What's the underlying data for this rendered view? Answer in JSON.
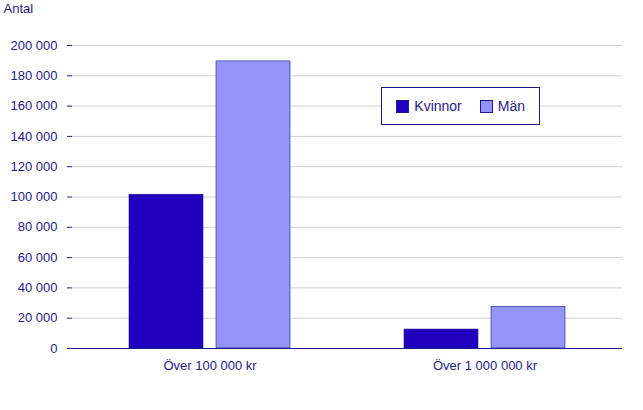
{
  "chart_data": {
    "type": "bar",
    "y_label": "Antal",
    "categories": [
      "Över 100 000 kr",
      "Över 1 000 000 kr"
    ],
    "series": [
      {
        "name": "Kvinnor",
        "color": "#2200c0",
        "values": [
          101500,
          12500
        ]
      },
      {
        "name": "Män",
        "color": "#9393f8",
        "values": [
          189500,
          27500
        ]
      }
    ],
    "ylim": [
      0,
      200000
    ],
    "yticks": [
      0,
      {
        "value": 20000,
        "label": "20 000"
      },
      {
        "value": 40000,
        "label": "40 000"
      },
      {
        "value": 60000,
        "label": "60 000"
      },
      {
        "value": 80000,
        "label": "80 000"
      },
      {
        "value": 100000,
        "label": "100 000"
      },
      {
        "value": 120000,
        "label": "120 000"
      },
      {
        "value": 140000,
        "label": "140 000"
      },
      {
        "value": 160000,
        "label": "160 000"
      },
      {
        "value": 180000,
        "label": "180 000"
      },
      {
        "value": 200000,
        "label": "200 000"
      }
    ],
    "grid": true,
    "legend": "upper right"
  }
}
